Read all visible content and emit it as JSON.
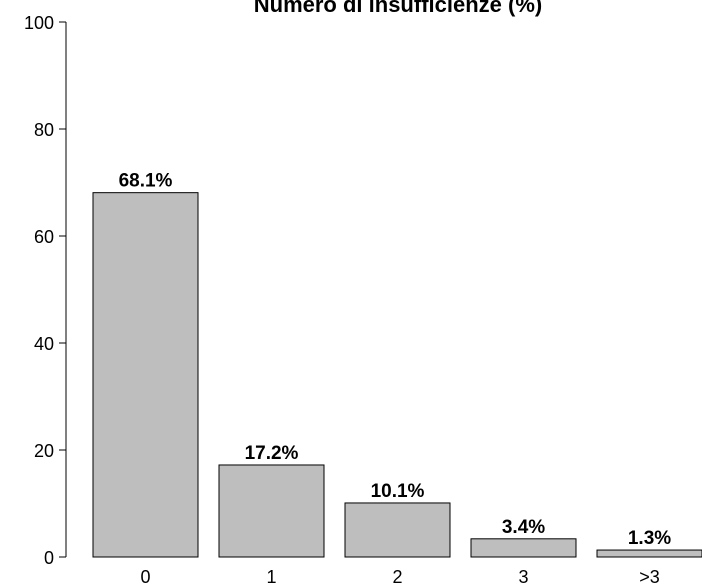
{
  "chart_data": {
    "type": "bar",
    "title": "Numero di insufficienze (%)",
    "categories": [
      "0",
      "1",
      "2",
      "3",
      ">3"
    ],
    "values": [
      68.1,
      17.2,
      10.1,
      3.4,
      1.3
    ],
    "data_labels": [
      "68.1%",
      "17.2%",
      "10.1%",
      "3.4%",
      "1.3%"
    ],
    "xlabel": "",
    "ylabel": "",
    "ylim": [
      0,
      100
    ],
    "yticks": [
      "0",
      "20",
      "40",
      "60",
      "80",
      "100"
    ],
    "grid": false,
    "bar_color": "#bebebe",
    "bar_edge_color": "#000000"
  }
}
